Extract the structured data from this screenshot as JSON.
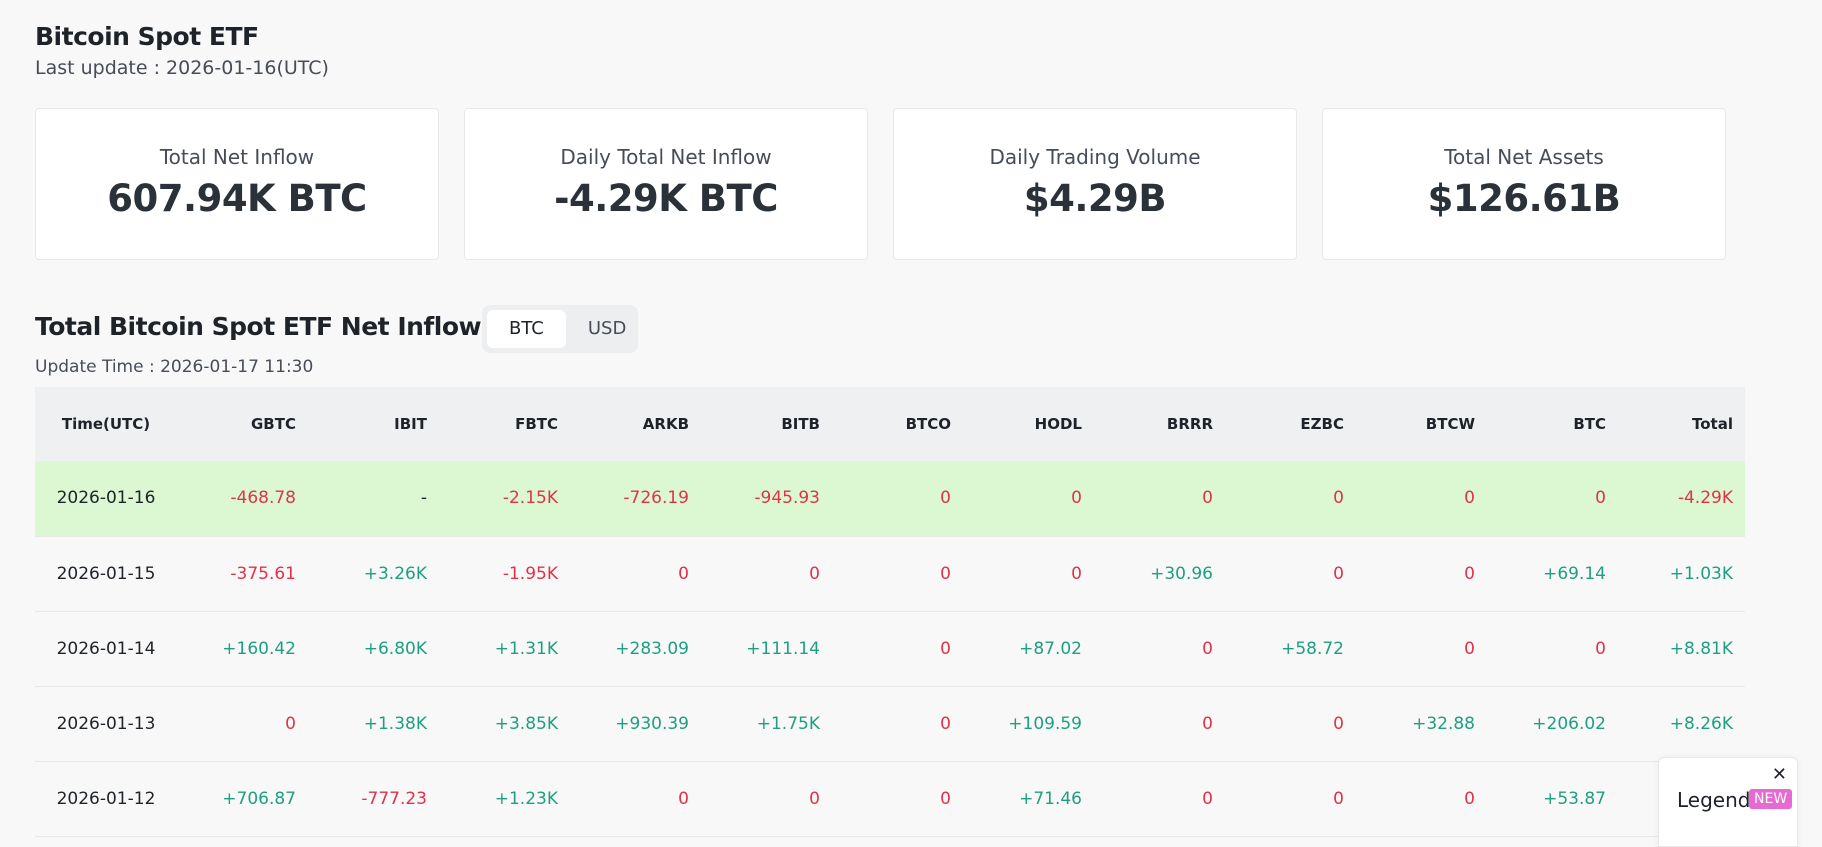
{
  "header": {
    "title": "Bitcoin Spot ETF",
    "last_update": "Last update : 2026-01-16(UTC)"
  },
  "cards": [
    {
      "label": "Total Net Inflow",
      "value": "607.94K BTC"
    },
    {
      "label": "Daily Total Net Inflow",
      "value": "-4.29K BTC"
    },
    {
      "label": "Daily Trading Volume",
      "value": "$4.29B"
    },
    {
      "label": "Total Net Assets",
      "value": "$126.61B"
    }
  ],
  "section": {
    "title": "Total Bitcoin Spot ETF Net Inflow (BTC)",
    "toggle": [
      "BTC",
      "USD"
    ],
    "active_unit": "BTC",
    "update_time": "Update Time : 2026-01-17 11:30"
  },
  "table": {
    "columns": [
      "Time(UTC)",
      "GBTC",
      "IBIT",
      "FBTC",
      "ARKB",
      "BITB",
      "BTCO",
      "HODL",
      "BRRR",
      "EZBC",
      "BTCW",
      "BTC",
      "Total"
    ],
    "rows": [
      [
        "2026-01-16",
        "-468.78",
        "-",
        "-2.15K",
        "-726.19",
        "-945.93",
        "0",
        "0",
        "0",
        "0",
        "0",
        "0",
        "-4.29K"
      ],
      [
        "2026-01-15",
        "-375.61",
        "+3.26K",
        "-1.95K",
        "0",
        "0",
        "0",
        "0",
        "+30.96",
        "0",
        "0",
        "+69.14",
        "+1.03K"
      ],
      [
        "2026-01-14",
        "+160.42",
        "+6.80K",
        "+1.31K",
        "+283.09",
        "+111.14",
        "0",
        "+87.02",
        "0",
        "+58.72",
        "0",
        "0",
        "+8.81K"
      ],
      [
        "2026-01-13",
        "0",
        "+1.38K",
        "+3.85K",
        "+930.39",
        "+1.75K",
        "0",
        "+109.59",
        "0",
        "0",
        "+32.88",
        "+206.02",
        "+8.26K"
      ],
      [
        "2026-01-12",
        "+706.87",
        "-777.23",
        "+1.23K",
        "0",
        "0",
        "0",
        "+71.46",
        "0",
        "0",
        "0",
        "+53.87",
        ""
      ]
    ]
  },
  "legend": {
    "label": "Legend",
    "badge": "NEW",
    "close_icon": "close-icon"
  },
  "colors": {
    "negative": "#e0334a",
    "positive": "#1e9f82",
    "highlight_row": "#dcf8d2",
    "badge": "#e66ad1"
  }
}
